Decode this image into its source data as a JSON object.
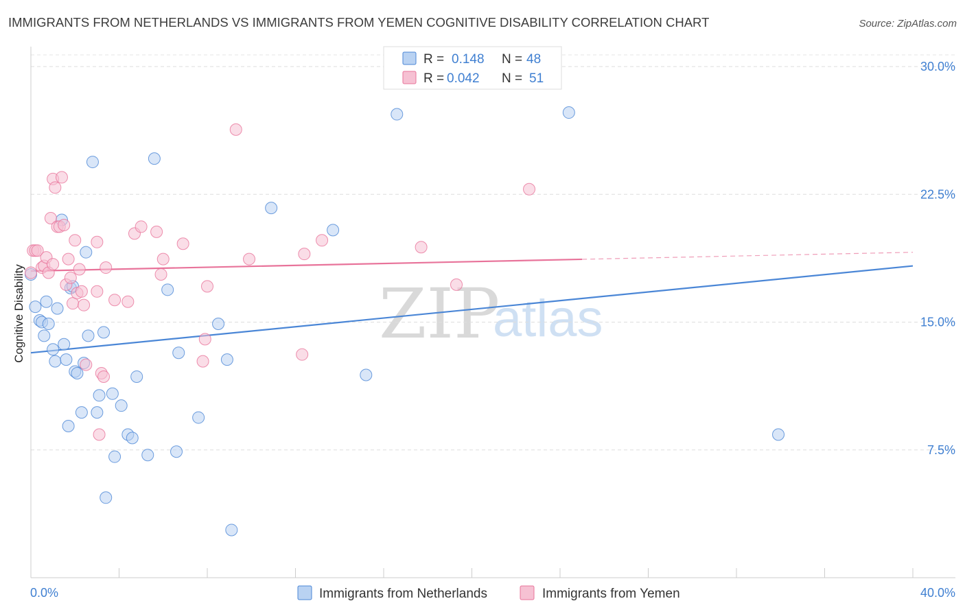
{
  "chart_data": {
    "type": "scatter",
    "title": "IMMIGRANTS FROM NETHERLANDS VS IMMIGRANTS FROM YEMEN COGNITIVE DISABILITY CORRELATION CHART",
    "source": "Source: ZipAtlas.com",
    "ylabel": "Cognitive Disability",
    "xlabel": "",
    "xlim": [
      0,
      40
    ],
    "ylim": [
      0,
      31
    ],
    "x_tick_labels": [
      "0.0%",
      "40.0%"
    ],
    "y_ticks": [
      {
        "value": 7.5,
        "label": "7.5%"
      },
      {
        "value": 15.0,
        "label": "15.0%"
      },
      {
        "value": 22.5,
        "label": "22.5%"
      },
      {
        "value": 30.0,
        "label": "30.0%"
      }
    ],
    "watermark": {
      "zip": "ZIP",
      "atlas": "atlas"
    },
    "legend": {
      "r_label": "R =",
      "n_label": "N =",
      "entries": [
        {
          "r": "0.148",
          "n": "48"
        },
        {
          "r": "0.042",
          "n": "51"
        }
      ]
    },
    "series": [
      {
        "name": "Immigrants from Netherlands",
        "color": "#4a86d6",
        "fill": "#b9d2f2",
        "trend": {
          "x0": 0,
          "y0": 13.2,
          "x1": 40,
          "y1": 18.3,
          "solid_until": 40
        },
        "points": [
          [
            0.0,
            17.8
          ],
          [
            0.2,
            15.9
          ],
          [
            0.4,
            15.1
          ],
          [
            0.5,
            15.0
          ],
          [
            0.6,
            14.2
          ],
          [
            0.7,
            16.2
          ],
          [
            0.8,
            14.9
          ],
          [
            1.0,
            13.4
          ],
          [
            1.1,
            12.7
          ],
          [
            1.2,
            15.8
          ],
          [
            1.4,
            21.0
          ],
          [
            1.5,
            13.7
          ],
          [
            1.6,
            12.8
          ],
          [
            1.7,
            8.9
          ],
          [
            1.8,
            17.0
          ],
          [
            1.9,
            17.1
          ],
          [
            2.0,
            12.1
          ],
          [
            2.1,
            12.0
          ],
          [
            2.3,
            9.7
          ],
          [
            2.4,
            12.6
          ],
          [
            2.5,
            19.1
          ],
          [
            2.6,
            14.2
          ],
          [
            2.8,
            24.4
          ],
          [
            3.0,
            9.7
          ],
          [
            3.1,
            10.7
          ],
          [
            3.3,
            14.4
          ],
          [
            3.4,
            4.7
          ],
          [
            3.7,
            10.8
          ],
          [
            3.8,
            7.1
          ],
          [
            4.1,
            10.1
          ],
          [
            4.4,
            8.4
          ],
          [
            4.6,
            8.2
          ],
          [
            4.8,
            11.8
          ],
          [
            5.3,
            7.2
          ],
          [
            5.6,
            24.6
          ],
          [
            6.2,
            16.9
          ],
          [
            6.6,
            7.4
          ],
          [
            6.7,
            13.2
          ],
          [
            7.6,
            9.4
          ],
          [
            8.5,
            14.9
          ],
          [
            8.9,
            12.8
          ],
          [
            9.1,
            2.8
          ],
          [
            10.9,
            21.7
          ],
          [
            13.7,
            20.4
          ],
          [
            15.2,
            11.9
          ],
          [
            16.6,
            27.2
          ],
          [
            24.4,
            27.3
          ],
          [
            33.9,
            8.4
          ]
        ]
      },
      {
        "name": "Immigrants from Yemen",
        "color": "#e8739a",
        "fill": "#f6c1d3",
        "trend": {
          "x0": 0,
          "y0": 18.0,
          "x1": 40,
          "y1": 19.1,
          "solid_until": 25
        },
        "points": [
          [
            0.0,
            17.9
          ],
          [
            0.1,
            19.2
          ],
          [
            0.2,
            19.2
          ],
          [
            0.3,
            19.2
          ],
          [
            0.5,
            18.2
          ],
          [
            0.6,
            18.3
          ],
          [
            0.7,
            18.8
          ],
          [
            0.8,
            17.9
          ],
          [
            0.9,
            21.1
          ],
          [
            1.0,
            18.4
          ],
          [
            1.0,
            23.4
          ],
          [
            1.1,
            22.9
          ],
          [
            1.2,
            20.6
          ],
          [
            1.3,
            20.6
          ],
          [
            1.4,
            23.5
          ],
          [
            1.5,
            20.7
          ],
          [
            1.6,
            17.2
          ],
          [
            1.7,
            18.7
          ],
          [
            1.8,
            17.6
          ],
          [
            1.9,
            16.1
          ],
          [
            2.0,
            19.8
          ],
          [
            2.1,
            16.7
          ],
          [
            2.2,
            18.1
          ],
          [
            2.3,
            16.8
          ],
          [
            2.4,
            16.0
          ],
          [
            2.5,
            12.5
          ],
          [
            3.0,
            16.8
          ],
          [
            3.0,
            19.7
          ],
          [
            3.1,
            8.4
          ],
          [
            3.2,
            12.0
          ],
          [
            3.3,
            11.8
          ],
          [
            3.4,
            18.2
          ],
          [
            3.8,
            16.3
          ],
          [
            4.4,
            16.2
          ],
          [
            4.7,
            20.2
          ],
          [
            5.0,
            20.6
          ],
          [
            5.7,
            20.3
          ],
          [
            5.9,
            17.8
          ],
          [
            6.0,
            18.7
          ],
          [
            6.9,
            19.6
          ],
          [
            7.8,
            12.7
          ],
          [
            7.9,
            14.0
          ],
          [
            8.0,
            17.1
          ],
          [
            9.3,
            26.3
          ],
          [
            9.9,
            18.7
          ],
          [
            12.3,
            13.1
          ],
          [
            12.4,
            19.0
          ],
          [
            13.2,
            19.8
          ],
          [
            17.7,
            19.4
          ],
          [
            19.3,
            17.2
          ],
          [
            22.6,
            22.8
          ]
        ]
      }
    ]
  }
}
